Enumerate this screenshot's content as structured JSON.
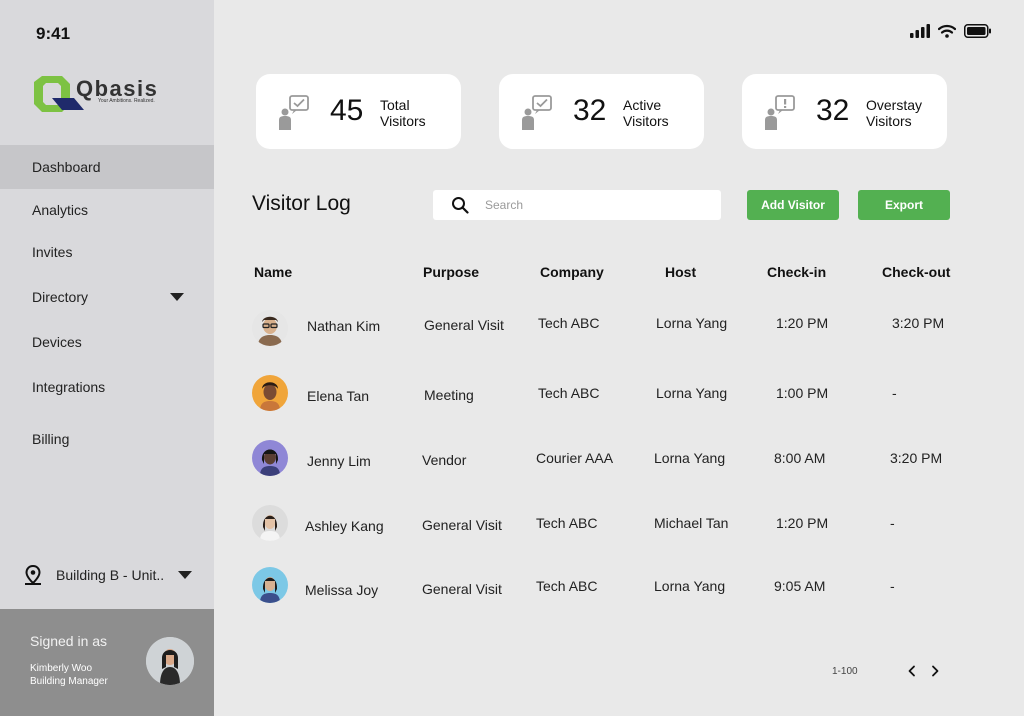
{
  "status_bar": {
    "time": "9:41"
  },
  "brand": {
    "name": "Qbasis",
    "tagline": "Your Ambitions. Realized.",
    "colors": {
      "green": "#7dc243",
      "navy": "#1f2a6b"
    }
  },
  "sidebar": {
    "items": [
      {
        "label": "Dashboard",
        "active": true
      },
      {
        "label": "Analytics"
      },
      {
        "label": "Invites"
      },
      {
        "label": "Directory",
        "has_dropdown": true
      },
      {
        "label": "Devices"
      },
      {
        "label": "Integrations"
      },
      {
        "label": "Billing"
      }
    ],
    "location": "Building B - Unit..",
    "signed_in": {
      "label": "Signed in as",
      "name": "Kimberly Woo",
      "role": "Building Manager"
    }
  },
  "stats": [
    {
      "value": "45",
      "label_line1": "Total",
      "label_line2": "Visitors",
      "icon": "visitor-check-icon"
    },
    {
      "value": "32",
      "label_line1": "Active",
      "label_line2": "Visitors",
      "icon": "visitor-check-icon"
    },
    {
      "value": "32",
      "label_line1": "Overstay",
      "label_line2": "Visitors",
      "icon": "visitor-alert-icon"
    }
  ],
  "log": {
    "title": "Visitor Log",
    "search_placeholder": "Search",
    "add_label": "Add Visitor",
    "export_label": "Export",
    "accent": "#53b051",
    "columns": [
      "Name",
      "Purpose",
      "Company",
      "Host",
      "Check-in",
      "Check-out"
    ],
    "rows": [
      {
        "name": "Nathan Kim",
        "purpose": "General Visit",
        "company": "Tech ABC",
        "host": "Lorna Yang",
        "checkin": "1:20 PM",
        "checkout": "3:20 PM"
      },
      {
        "name": "Elena Tan",
        "purpose": "Meeting",
        "company": "Tech ABC",
        "host": "Lorna Yang",
        "checkin": "1:00 PM",
        "checkout": "-"
      },
      {
        "name": "Jenny Lim",
        "purpose": "Vendor",
        "company": "Courier AAA",
        "host": "Lorna Yang",
        "checkin": "8:00 AM",
        "checkout": "3:20 PM"
      },
      {
        "name": "Ashley Kang",
        "purpose": "General Visit",
        "company": "Tech ABC",
        "host": "Michael Tan",
        "checkin": "1:20 PM",
        "checkout": "-"
      },
      {
        "name": "Melissa Joy",
        "purpose": "General Visit",
        "company": "Tech ABC",
        "host": "Lorna Yang",
        "checkin": "9:05 AM",
        "checkout": "-"
      }
    ],
    "pagination": {
      "range": "1-100"
    }
  }
}
